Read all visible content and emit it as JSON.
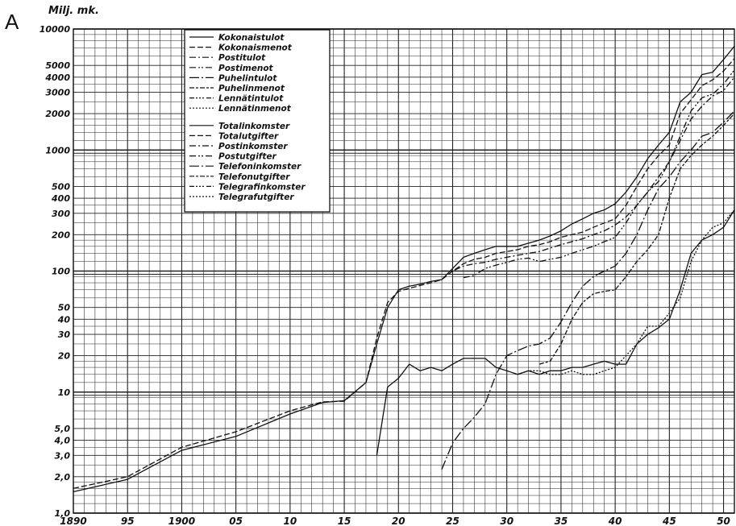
{
  "panel_letter": "A",
  "chart_data": {
    "type": "line",
    "y_unit_label": "Milj. mk.",
    "y_scale": "log",
    "ylim": [
      1,
      10000
    ],
    "xlim": [
      1890,
      1951
    ],
    "grid": true,
    "legend_placement": "top-left",
    "y_ticks": [
      {
        "value": 10000,
        "label": "10000"
      },
      {
        "value": 5000,
        "label": "5000"
      },
      {
        "value": 4000,
        "label": "4000"
      },
      {
        "value": 3000,
        "label": "3000"
      },
      {
        "value": 2000,
        "label": "2000"
      },
      {
        "value": 1000,
        "label": "1000"
      },
      {
        "value": 500,
        "label": "500"
      },
      {
        "value": 400,
        "label": "400"
      },
      {
        "value": 300,
        "label": "300"
      },
      {
        "value": 200,
        "label": "200"
      },
      {
        "value": 100,
        "label": "100"
      },
      {
        "value": 50,
        "label": "50"
      },
      {
        "value": 40,
        "label": "40"
      },
      {
        "value": 30,
        "label": "30"
      },
      {
        "value": 20,
        "label": "20"
      },
      {
        "value": 10,
        "label": "10"
      },
      {
        "value": 5,
        "label": "5,0"
      },
      {
        "value": 4,
        "label": "4,0"
      },
      {
        "value": 3,
        "label": "3,0"
      },
      {
        "value": 2,
        "label": "2,0"
      },
      {
        "value": 1,
        "label": "1,0"
      }
    ],
    "x_ticks": [
      {
        "value": 1890,
        "label": "1890"
      },
      {
        "value": 1895,
        "label": "95"
      },
      {
        "value": 1900,
        "label": "1900"
      },
      {
        "value": 1905,
        "label": "05"
      },
      {
        "value": 1910,
        "label": "10"
      },
      {
        "value": 1915,
        "label": "15"
      },
      {
        "value": 1920,
        "label": "20"
      },
      {
        "value": 1925,
        "label": "25"
      },
      {
        "value": 1930,
        "label": "30"
      },
      {
        "value": 1935,
        "label": "35"
      },
      {
        "value": 1940,
        "label": "40"
      },
      {
        "value": 1945,
        "label": "45"
      },
      {
        "value": 1950,
        "label": "50"
      }
    ],
    "legend": [
      {
        "label": "Kokonaistulot",
        "dash": "solid"
      },
      {
        "label": "Kokonaismenot",
        "dash": "dashed"
      },
      {
        "label": "Postitulot",
        "dash": "dashdot"
      },
      {
        "label": "Postimenot",
        "dash": "dashdotdot"
      },
      {
        "label": "Puhelintulot",
        "dash": "longdashdot"
      },
      {
        "label": "Puhelinmenot",
        "dash": "dashcross"
      },
      {
        "label": "Lennätintulot",
        "dash": "dashdotdotdot"
      },
      {
        "label": "Lennätinmenot",
        "dash": "dotted"
      },
      {
        "label": "Totalinkomster",
        "dash": "solid"
      },
      {
        "label": "Totalutgifter",
        "dash": "dashed"
      },
      {
        "label": "Postinkomster",
        "dash": "dashdot"
      },
      {
        "label": "Postutgifter",
        "dash": "dashdotdot"
      },
      {
        "label": "Telefoninkomster",
        "dash": "longdashdot"
      },
      {
        "label": "Telefonutgifter",
        "dash": "dashcross"
      },
      {
        "label": "Telegrafinkomster",
        "dash": "dashdotdotdot"
      },
      {
        "label": "Telegrafutgifter",
        "dash": "dotted"
      }
    ],
    "series": [
      {
        "dash": "solid",
        "x": [
          1890,
          1895,
          1900,
          1905,
          1910,
          1913,
          1915,
          1917,
          1918,
          1919,
          1920,
          1921,
          1922,
          1923,
          1924,
          1925,
          1926,
          1927,
          1928,
          1929,
          1930,
          1931,
          1932,
          1933,
          1934,
          1935,
          1936,
          1937,
          1938,
          1939,
          1940,
          1941,
          1942,
          1943,
          1944,
          1945,
          1946,
          1947,
          1948,
          1949,
          1950,
          1951
        ],
        "y": [
          1.5,
          1.9,
          3.3,
          4.3,
          6.6,
          8.2,
          8.5,
          12,
          25,
          50,
          70,
          75,
          78,
          82,
          85,
          105,
          130,
          140,
          150,
          160,
          160,
          160,
          170,
          180,
          195,
          215,
          245,
          270,
          300,
          320,
          360,
          450,
          600,
          850,
          1100,
          1400,
          2500,
          3000,
          4200,
          4400,
          5600,
          7200
        ]
      },
      {
        "dash": "dashed",
        "x": [
          1890,
          1895,
          1900,
          1905,
          1910,
          1913,
          1915,
          1917,
          1918,
          1919,
          1920,
          1921,
          1922,
          1923,
          1924,
          1925,
          1926,
          1927,
          1928,
          1929,
          1930,
          1931,
          1932,
          1933,
          1934,
          1935,
          1936,
          1937,
          1938,
          1939,
          1940,
          1941,
          1942,
          1943,
          1944,
          1945,
          1946,
          1947,
          1948,
          1949,
          1950,
          1951
        ],
        "y": [
          1.6,
          2.0,
          3.5,
          4.7,
          7.0,
          8.3,
          8.4,
          12,
          28,
          55,
          68,
          72,
          76,
          80,
          85,
          100,
          115,
          125,
          130,
          140,
          145,
          150,
          160,
          165,
          175,
          190,
          200,
          210,
          230,
          250,
          270,
          350,
          500,
          700,
          900,
          1100,
          2000,
          2600,
          3400,
          3800,
          4500,
          5700
        ]
      },
      {
        "dash": "dashdot",
        "x": [
          1924,
          1925,
          1926,
          1927,
          1928,
          1929,
          1930,
          1931,
          1932,
          1933,
          1934,
          1935,
          1936,
          1937,
          1938,
          1939,
          1940,
          1941,
          1942,
          1943,
          1944,
          1945,
          1946,
          1947,
          1948,
          1949,
          1950,
          1951
        ],
        "y": [
          100,
          100,
          110,
          115,
          118,
          125,
          130,
          135,
          140,
          145,
          155,
          165,
          175,
          185,
          200,
          215,
          240,
          280,
          350,
          450,
          600,
          800,
          1200,
          1800,
          2300,
          2800,
          3100,
          4000
        ]
      },
      {
        "dash": "dashdotdot",
        "x": [
          1926,
          1927,
          1928,
          1929,
          1930,
          1931,
          1932,
          1933,
          1934,
          1935,
          1936,
          1937,
          1938,
          1939,
          1940,
          1941,
          1942,
          1943,
          1944,
          1945,
          1946,
          1947,
          1948,
          1949,
          1950,
          1951
        ],
        "y": [
          88,
          92,
          105,
          112,
          118,
          125,
          128,
          120,
          125,
          130,
          140,
          150,
          160,
          175,
          190,
          250,
          350,
          450,
          550,
          800,
          1300,
          2100,
          2700,
          2900,
          3500,
          4600
        ]
      },
      {
        "dash": "longdashdot",
        "x": [
          1924,
          1925,
          1926,
          1927,
          1928,
          1929,
          1930,
          1931,
          1932,
          1933,
          1934,
          1935,
          1936,
          1937,
          1938,
          1939,
          1940,
          1941,
          1942,
          1943,
          1944,
          1945,
          1946,
          1947,
          1948,
          1949,
          1950,
          1951
        ],
        "y": [
          2.3,
          3.8,
          5.0,
          6.2,
          8.0,
          14,
          20,
          22,
          24,
          25,
          28,
          38,
          55,
          75,
          90,
          100,
          110,
          140,
          200,
          320,
          480,
          600,
          800,
          1000,
          1300,
          1400,
          1700,
          2100
        ]
      },
      {
        "dash": "dashcross",
        "x": [
          1933,
          1934,
          1935,
          1936,
          1937,
          1938,
          1939,
          1940,
          1941,
          1942,
          1943,
          1944,
          1945,
          1946,
          1947,
          1948,
          1949,
          1950,
          1951
        ],
        "y": [
          17,
          18,
          25,
          40,
          55,
          65,
          68,
          70,
          90,
          120,
          150,
          200,
          400,
          700,
          900,
          1100,
          1300,
          1600,
          2000
        ]
      },
      {
        "dash": "solid",
        "x": [
          1918,
          1919,
          1920,
          1921,
          1922,
          1923,
          1924,
          1925,
          1926,
          1927,
          1928,
          1929,
          1930,
          1931,
          1932,
          1933,
          1934,
          1935,
          1936,
          1937,
          1938,
          1939,
          1940,
          1941,
          1942,
          1943,
          1944,
          1945,
          1946,
          1947,
          1948,
          1949,
          1950,
          1951
        ],
        "y": [
          3.0,
          11,
          13,
          17,
          15,
          16,
          15,
          17,
          19,
          19,
          19,
          16,
          15,
          14,
          15,
          14,
          15,
          15,
          16,
          16,
          17,
          18,
          17,
          17,
          25,
          30,
          34,
          40,
          70,
          140,
          180,
          200,
          230,
          320
        ]
      },
      {
        "dash": "dotted",
        "x": [
          1931,
          1932,
          1933,
          1934,
          1935,
          1936,
          1937,
          1938,
          1939,
          1940,
          1941,
          1942,
          1943,
          1944,
          1945,
          1946,
          1947,
          1948,
          1949,
          1950,
          1951
        ],
        "y": [
          14,
          15,
          15,
          14,
          14,
          15,
          14,
          14,
          15,
          16,
          20,
          25,
          35,
          35,
          45,
          60,
          120,
          180,
          230,
          250,
          320
        ]
      }
    ]
  }
}
